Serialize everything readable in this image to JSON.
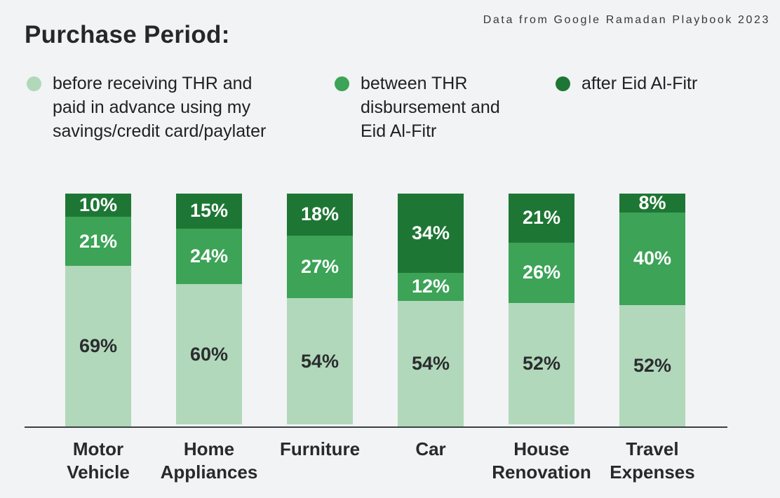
{
  "header": {
    "source_note": "Data from Google Ramadan Playbook 2023",
    "title": "Purchase Period:"
  },
  "legend": {
    "items": [
      {
        "id": "before-thr",
        "label": "before receiving THR and paid in advance using my savings/credit card/paylater",
        "label_lines": [
          "before receiving THR and",
          "paid in advance using my",
          "savings/credit card/paylater"
        ],
        "color": "#b1d8ba"
      },
      {
        "id": "between-thr-eid",
        "label": "between THR disbursement and Eid Al-Fitr",
        "label_lines": [
          "between THR",
          "disbursement and",
          "Eid Al-Fitr"
        ],
        "color": "#3ca357"
      },
      {
        "id": "after-eid",
        "label": "after Eid Al-Fitr",
        "label_lines": [
          "after Eid Al-Fitr"
        ],
        "color": "#1e7634"
      }
    ]
  },
  "chart_data": {
    "type": "bar",
    "stacked": true,
    "title": "Purchase Period:",
    "xlabel": "",
    "ylabel": "",
    "ylim": [
      0,
      100
    ],
    "grid": false,
    "legend_position": "top",
    "value_suffix": "%",
    "categories": [
      "Motor Vehicle",
      "Home Appliances",
      "Furniture",
      "Car",
      "House Renovation",
      "Travel Expenses"
    ],
    "category_label_lines": [
      [
        "Motor",
        "Vehicle"
      ],
      [
        "Home",
        "Appliances"
      ],
      [
        "Furniture"
      ],
      [
        "Car"
      ],
      [
        "House",
        "Renovation"
      ],
      [
        "Travel",
        "Expenses"
      ]
    ],
    "series": [
      {
        "name": "before receiving THR and paid in advance using my savings/credit card/paylater",
        "color": "#b1d8ba",
        "label_color": "#2b2d2f",
        "values": [
          69,
          60,
          54,
          54,
          52,
          52
        ]
      },
      {
        "name": "between THR disbursement and Eid Al-Fitr",
        "color": "#3ca357",
        "label_color": "#ffffff",
        "values": [
          21,
          24,
          27,
          12,
          26,
          40
        ]
      },
      {
        "name": "after Eid Al-Fitr",
        "color": "#1e7634",
        "label_color": "#ffffff",
        "values": [
          10,
          15,
          18,
          34,
          21,
          8
        ]
      }
    ]
  },
  "colors": {
    "background": "#f1f3f4",
    "axis": "#3c4043",
    "text_dark": "#202124",
    "segment_light": "#b1d8ba",
    "segment_medium": "#3ca357",
    "segment_dark": "#1e7634"
  }
}
